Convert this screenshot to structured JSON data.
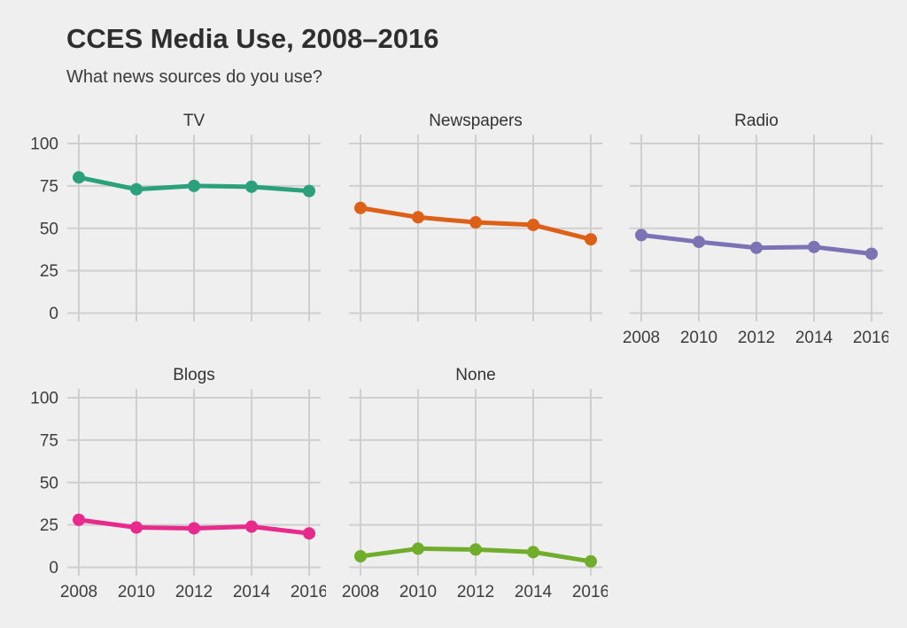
{
  "header": {
    "title": "CCES Media Use, 2008–2016",
    "subtitle": "What news sources do you use?"
  },
  "colors": {
    "background": "#efefef",
    "gridline": "#cfcfcf",
    "title_text": "#2e2e2e",
    "subtitle_text": "#3a3a3a",
    "axis_text": "#3d3d3d",
    "facet_title_text": "#333333"
  },
  "chart_data": {
    "type": "line",
    "title": "CCES Media Use, 2008–2016",
    "subtitle": "What news sources do you use?",
    "x": [
      2008,
      2010,
      2012,
      2014,
      2016
    ],
    "xlabel": "",
    "ylabel": "",
    "ylim": [
      0,
      100
    ],
    "yticks": [
      0,
      25,
      50,
      75,
      100
    ],
    "grid": true,
    "legend": "none",
    "layout": "faceted small multiples, 3 columns by 2 rows, 5 panels",
    "facets": [
      {
        "label": "TV",
        "color": "#2aa17c",
        "values": [
          80,
          73,
          75,
          74.5,
          72
        ],
        "show_y_axis": true,
        "show_x_axis": false,
        "grid_col": 1,
        "grid_row": 1
      },
      {
        "label": "Newspapers",
        "color": "#dd6018",
        "values": [
          62,
          56.5,
          53.5,
          52,
          43.5
        ],
        "show_y_axis": false,
        "show_x_axis": false,
        "grid_col": 2,
        "grid_row": 1
      },
      {
        "label": "Radio",
        "color": "#7a74b5",
        "values": [
          46,
          42,
          38.5,
          39,
          35
        ],
        "show_y_axis": false,
        "show_x_axis": true,
        "grid_col": 3,
        "grid_row": 1
      },
      {
        "label": "Blogs",
        "color": "#e72a8c",
        "values": [
          28,
          23.5,
          23,
          24,
          20
        ],
        "show_y_axis": true,
        "show_x_axis": true,
        "grid_col": 1,
        "grid_row": 2
      },
      {
        "label": "None",
        "color": "#6fad2b",
        "values": [
          6.5,
          11,
          10.5,
          9,
          3.5
        ],
        "show_y_axis": false,
        "show_x_axis": true,
        "grid_col": 2,
        "grid_row": 2
      }
    ]
  }
}
